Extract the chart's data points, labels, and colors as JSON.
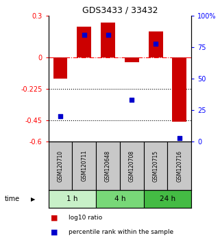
{
  "title": "GDS3433 / 33432",
  "samples": [
    "GSM120710",
    "GSM120711",
    "GSM120648",
    "GSM120708",
    "GSM120715",
    "GSM120716"
  ],
  "log10_ratio": [
    -0.15,
    0.22,
    0.25,
    -0.03,
    0.19,
    -0.46
  ],
  "percentile_rank": [
    20,
    85,
    85,
    33,
    78,
    3
  ],
  "ylim_left": [
    -0.6,
    0.3
  ],
  "ylim_right": [
    0,
    100
  ],
  "yticks_left": [
    0.3,
    0,
    -0.225,
    -0.45,
    -0.6
  ],
  "ytick_labels_left": [
    "0.3",
    "0",
    "-0.225",
    "-0.45",
    "-0.6"
  ],
  "yticks_right": [
    100,
    75,
    50,
    25,
    0
  ],
  "ytick_labels_right": [
    "100%",
    "75",
    "50",
    "25",
    "0"
  ],
  "hlines_dotted": [
    -0.225,
    -0.45
  ],
  "hline_dashdot": 0,
  "bar_color": "#cc0000",
  "dot_color": "#0000cc",
  "time_groups": [
    {
      "label": "1 h",
      "indices": [
        0,
        1
      ],
      "color": "#c8f0c8"
    },
    {
      "label": "4 h",
      "indices": [
        2,
        3
      ],
      "color": "#78d878"
    },
    {
      "label": "24 h",
      "indices": [
        4,
        5
      ],
      "color": "#44bb44"
    }
  ],
  "legend_red_label": "log10 ratio",
  "legend_blue_label": "percentile rank within the sample",
  "bar_width": 0.6,
  "dot_size": 18,
  "sample_label_color": "#c8c8c8"
}
